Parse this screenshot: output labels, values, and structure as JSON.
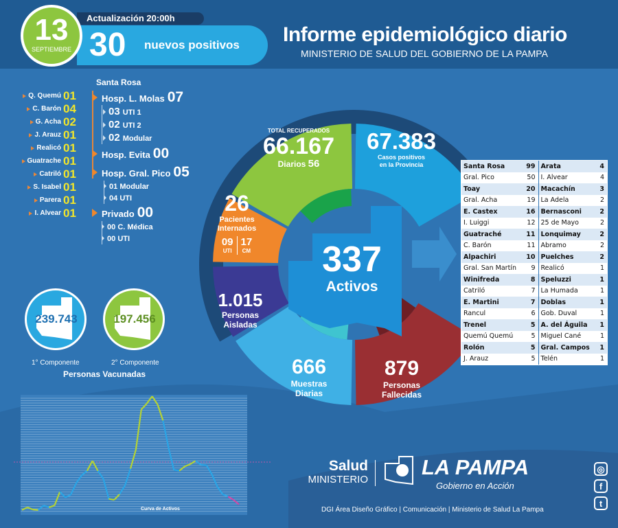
{
  "header": {
    "day": "13",
    "month": "SEPTIEMBRE",
    "update": "Actualización 20:00h",
    "new_positives": "30",
    "new_positives_label": "nuevos positivos",
    "title": "Informe epidemiológico diario",
    "subtitle": "MINISTERIO DE SALUD DEL GOBIERNO DE LA PAMPA"
  },
  "localities": [
    {
      "name": "Q. Quemú",
      "value": "01"
    },
    {
      "name": "C. Barón",
      "value": "04"
    },
    {
      "name": "G. Acha",
      "value": "02"
    },
    {
      "name": "J. Arauz",
      "value": "01"
    },
    {
      "name": "Realicó",
      "value": "01"
    },
    {
      "name": "Guatrache",
      "value": "01"
    },
    {
      "name": "Catriló",
      "value": "01"
    },
    {
      "name": "S. Isabel",
      "value": "01"
    },
    {
      "name": "Parera",
      "value": "01"
    },
    {
      "name": "I. Alvear",
      "value": "01"
    }
  ],
  "hospitals": {
    "city": "Santa Rosa",
    "molas": {
      "label": "Hosp. L. Molas",
      "value": "07",
      "sub": [
        {
          "n": "03",
          "l": "UTI 1"
        },
        {
          "n": "02",
          "l": "UTI 2"
        },
        {
          "n": "02",
          "l": "Modular"
        }
      ]
    },
    "evita": {
      "label": "Hosp. Evita",
      "value": "00"
    },
    "pico": {
      "label": "Hosp. Gral. Pico",
      "value": "05",
      "sub": [
        {
          "n": "01",
          "l": "Modular"
        },
        {
          "n": "04",
          "l": "UTI"
        }
      ]
    },
    "privado": {
      "label": "Privado",
      "value": "00",
      "sub": [
        {
          "n": "00",
          "l": "C. Médica"
        },
        {
          "n": "00",
          "l": "UTI"
        }
      ]
    }
  },
  "stats": {
    "recovered": {
      "caption": "TOTAL RECUPERADOS",
      "value": "66.167",
      "daily_label": "Diarios",
      "daily": "56"
    },
    "cases": {
      "value": "67.383",
      "l1": "Casos positivos",
      "l2": "en la Provincia"
    },
    "hospitalized": {
      "value": "26",
      "l1": "Pacientes",
      "l2": "Internados",
      "uti": "09",
      "uti_label": "UTI",
      "cm": "17",
      "cm_label": "CM"
    },
    "isolated": {
      "value": "1.015",
      "l1": "Personas",
      "l2": "Aisladas"
    },
    "samples": {
      "value": "666",
      "l1": "Muestras",
      "l2": "Diarias"
    },
    "deaths": {
      "value": "879",
      "l1": "Personas",
      "l2": "Fallecidas"
    },
    "active": {
      "value": "337",
      "label": "Activos"
    }
  },
  "colors": {
    "green": "#8dc63f",
    "blue": "#1ea0dc",
    "orange": "#f0872b",
    "purple": "#3b3a94",
    "lightblue": "#3fb0e5",
    "red": "#9a2f33",
    "ring": "#1d4a78"
  },
  "table": [
    [
      "Santa Rosa",
      "99",
      "Arata",
      "4"
    ],
    [
      "Gral. Pico",
      "50",
      "I. Alvear",
      "4"
    ],
    [
      "Toay",
      "20",
      "Macachín",
      "3"
    ],
    [
      "Gral. Acha",
      "19",
      "La Adela",
      "2"
    ],
    [
      "E. Castex",
      "16",
      "Bernasconi",
      "2"
    ],
    [
      "I. Luiggi",
      "12",
      "25 de Mayo",
      "2"
    ],
    [
      "Guatraché",
      "11",
      "Lonquimay",
      "2"
    ],
    [
      "C. Barón",
      "11",
      "Abramo",
      "2"
    ],
    [
      "Alpachiri",
      "10",
      "Puelches",
      "2"
    ],
    [
      "Gral. San Martín",
      "9",
      "Realicó",
      "1"
    ],
    [
      "Winifreda",
      "8",
      "Speluzzi",
      "1"
    ],
    [
      "Catriló",
      "7",
      "La Humada",
      "1"
    ],
    [
      "E. Martini",
      "7",
      "Doblas",
      "1"
    ],
    [
      "Rancul",
      "6",
      "Gob. Duval",
      "1"
    ],
    [
      "Trenel",
      "5",
      "A. del Águila",
      "1"
    ],
    [
      "Quemú Quemú",
      "5",
      "Miguel Cané",
      "1"
    ],
    [
      "Rolón",
      "5",
      "Gral. Campos",
      "1"
    ],
    [
      "J. Arauz",
      "5",
      "Telén",
      "1"
    ]
  ],
  "vaccines": {
    "first": {
      "value": "239.743",
      "label": "1° Componente"
    },
    "second": {
      "value": "197.456",
      "label": "2° Componente"
    },
    "title": "Personas Vacunadas"
  },
  "curve": {
    "title": "Curva de Activos",
    "ymax": 8000,
    "points": [
      [
        0,
        150,
        "b"
      ],
      [
        1,
        330,
        "g"
      ],
      [
        2,
        180,
        "g"
      ],
      [
        3,
        150,
        "g"
      ],
      [
        4,
        460,
        "b"
      ],
      [
        5,
        330,
        "b"
      ],
      [
        6,
        460,
        "g"
      ],
      [
        7,
        1400,
        "g"
      ],
      [
        8,
        1000,
        "b"
      ],
      [
        9,
        1200,
        "b"
      ],
      [
        10,
        1980,
        "b"
      ],
      [
        11,
        2510,
        "b"
      ],
      [
        12,
        2820,
        "b"
      ],
      [
        13,
        3500,
        "g"
      ],
      [
        14,
        2820,
        "g"
      ],
      [
        15,
        2280,
        "b"
      ],
      [
        16,
        910,
        "b"
      ],
      [
        17,
        840,
        "g"
      ],
      [
        18,
        1230,
        "g"
      ],
      [
        19,
        1830,
        "b"
      ],
      [
        20,
        2970,
        "b"
      ],
      [
        21,
        4260,
        "g"
      ],
      [
        22,
        7000,
        "g"
      ],
      [
        23,
        7400,
        "g"
      ],
      [
        24,
        7900,
        "g"
      ],
      [
        25,
        7340,
        "g"
      ],
      [
        26,
        6250,
        "g"
      ],
      [
        27,
        4420,
        "b"
      ],
      [
        28,
        2890,
        "b"
      ],
      [
        29,
        2820,
        "b"
      ],
      [
        30,
        3120,
        "g"
      ],
      [
        31,
        3270,
        "g"
      ],
      [
        32,
        3500,
        "g"
      ],
      [
        33,
        3230,
        "b"
      ],
      [
        34,
        3200,
        "b"
      ],
      [
        35,
        2590,
        "b"
      ],
      [
        36,
        1750,
        "b"
      ],
      [
        37,
        1220,
        "b"
      ],
      [
        38,
        1070,
        "b"
      ],
      [
        39,
        840,
        "p"
      ],
      [
        40,
        530,
        "p"
      ]
    ]
  },
  "footer": {
    "salud": "Salud",
    "ministerio": "MINISTERIO",
    "brand": "LA PAMPA",
    "slogan": "Gobierno en Acción",
    "credits": "DGI Área Diseño Gráfico  | Comunicación | Ministerio de Salud La Pampa",
    "social": [
      "instagram",
      "facebook",
      "twitter"
    ]
  }
}
